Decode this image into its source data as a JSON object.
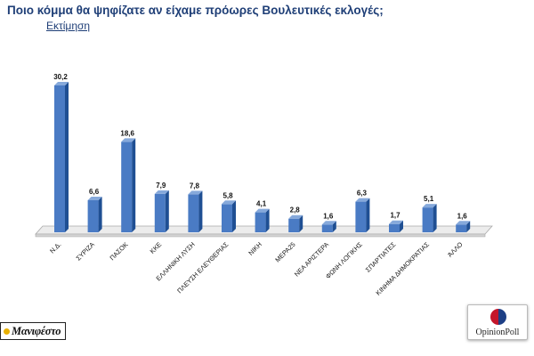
{
  "chart_data": {
    "type": "bar",
    "title": "Ποιο κόμμα θα ψηφίζατε αν είχαμε πρόωρες Βουλευτικές εκλογές;",
    "subtitle": "Εκτίμηση",
    "categories": [
      "Ν.Δ.",
      "ΣΥΡΙΖΑ",
      "ΠΑΣΟΚ",
      "ΚΚΕ",
      "ΕΛΛΗΝΙΚΗ ΛΥΣΗ",
      "ΠΛΕΥΣΗ ΕΛΕΥΘΕΡΙΑΣ",
      "ΝΙΚΗ",
      "ΜΕΡΑ25",
      "ΝΕΑ ΑΡΙΣΤΕΡΑ",
      "ΦΩΝΗ ΛΟΓΙΚΗΣ",
      "ΣΠΑΡΤΙΑΤΕΣ",
      "ΚΙΝΗΜΑ ΔΗΜΟΚΡΑΤΙΑΣ",
      "ΆΛΛΟ"
    ],
    "values": [
      30.2,
      6.6,
      18.6,
      7.9,
      7.8,
      5.8,
      4.1,
      2.8,
      1.6,
      6.3,
      1.7,
      5.1,
      1.6
    ],
    "data_labels": [
      "30,2",
      "6,6",
      "18,6",
      "7,9",
      "7,8",
      "5,8",
      "4,1",
      "2,8",
      "1,6",
      "6,3",
      "1,7",
      "5,1",
      "1,6"
    ],
    "ylim": [
      0,
      30.2
    ],
    "grid": false,
    "bar_color": "#4a7bc4",
    "bar_side_color": "#1f4f93",
    "bar_top_color": "#86a9db"
  },
  "logos": {
    "left": "Μανιφέστο",
    "right": "OpinionPoll"
  }
}
